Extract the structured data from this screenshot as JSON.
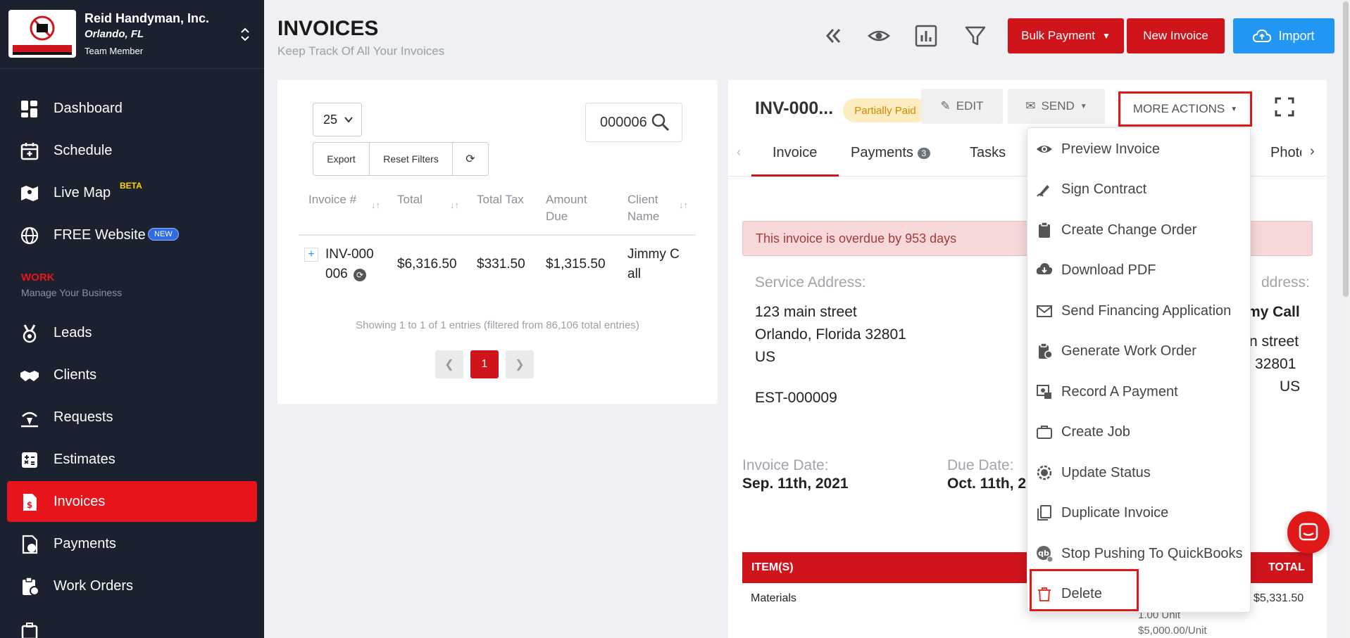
{
  "company": {
    "name": "Reid Handyman, Inc.",
    "city": "Orlando, FL",
    "role": "Team Member"
  },
  "nav": {
    "dashboard": "Dashboard",
    "schedule": "Schedule",
    "live_map": "Live Map",
    "live_map_badge": "BETA",
    "website": "FREE Website",
    "website_badge": "NEW",
    "section_title": "WORK",
    "section_sub": "Manage Your Business",
    "leads": "Leads",
    "clients": "Clients",
    "requests": "Requests",
    "estimates": "Estimates",
    "invoices": "Invoices",
    "payments": "Payments",
    "work_orders": "Work Orders"
  },
  "header": {
    "title": "INVOICES",
    "subtitle": "Keep Track Of All Your Invoices",
    "bulk_payment": "Bulk Payment",
    "new_invoice": "New Invoice",
    "import": "Import"
  },
  "list": {
    "per_page": "25",
    "search_value": "000006",
    "export": "Export",
    "reset_filters": "Reset Filters",
    "columns": [
      "Invoice #",
      "Total",
      "Total Tax",
      "Amount Due",
      "Client Name"
    ],
    "row": {
      "invoice_line1": "INV-000",
      "invoice_line2": "006",
      "total": "$6,316.50",
      "tax": "$331.50",
      "due": "$1,315.50",
      "client_line1": "Jimmy C",
      "client_line2": "all"
    },
    "showing": "Showing 1 to 1 of 1 entries (filtered from 86,106 total entries)",
    "page": "1"
  },
  "detail": {
    "invoice_id": "INV-000...",
    "status": "Partially Paid",
    "edit": "EDIT",
    "send": "SEND",
    "more_actions": "MORE ACTIONS",
    "tabs": {
      "invoice": "Invoice",
      "payments": "Payments",
      "payments_count": "3",
      "tasks": "Tasks",
      "photos": "Photo"
    },
    "overdue": "This invoice is overdue by 953 days",
    "service_address_label": "Service Address:",
    "service_line1": "123 main street",
    "service_line2": "Orlando, Florida 32801",
    "service_line3": "US",
    "estimate_ref": "EST-000009",
    "billing_label_partial": "ddress:",
    "billing_name_partial": "my Call",
    "billing_line1_partial": "n street",
    "billing_line2_partial": "32801",
    "billing_line3": "US",
    "invoice_date_label": "Invoice Date:",
    "invoice_date": "Sep. 11th, 2021",
    "due_date_label": "Due Date:",
    "due_date": "Oct. 11th, 2",
    "items_header": "ITEM(S)",
    "total_header": "TOTAL",
    "item_name": "Materials",
    "item_qty": "1.00 Unit",
    "item_rate": "$5,000.00/Unit",
    "item_total": "$5,331.50"
  },
  "menu": {
    "items": [
      {
        "label": "Preview Invoice",
        "icon": "eye-icon"
      },
      {
        "label": "Sign Contract",
        "icon": "signature-icon"
      },
      {
        "label": "Create Change Order",
        "icon": "clipboard-icon"
      },
      {
        "label": "Download PDF",
        "icon": "cloud-download-icon"
      },
      {
        "label": "Send Financing Application",
        "icon": "envelope-icon"
      },
      {
        "label": "Generate Work Order",
        "icon": "clipboard-plus-icon"
      },
      {
        "label": "Record A Payment",
        "icon": "cash-icon"
      },
      {
        "label": "Create Job",
        "icon": "briefcase-icon"
      },
      {
        "label": "Update Status",
        "icon": "status-icon"
      },
      {
        "label": "Duplicate Invoice",
        "icon": "copy-icon"
      },
      {
        "label": "Stop Pushing To QuickBooks",
        "icon": "quickbooks-icon"
      },
      {
        "label": "Delete",
        "icon": "trash-icon"
      }
    ]
  },
  "colors": {
    "sidebar": "#1c2130",
    "accent_red": "#d0141c",
    "active_nav": "#e8141c",
    "import_blue": "#2196f3",
    "status_bg": "#fcecbf"
  }
}
